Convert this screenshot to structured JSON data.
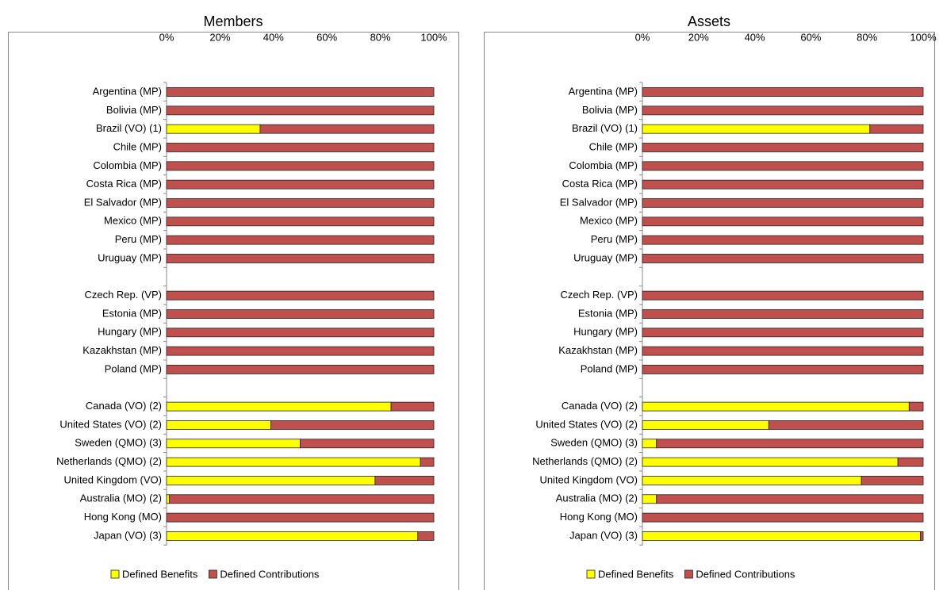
{
  "chart_data": [
    {
      "type": "bar",
      "title": "Members",
      "orientation": "horizontal",
      "stacked": true,
      "legend": "bottom",
      "categories": [
        "Argentina (MP)",
        "Bolivia (MP)",
        "Brazil (VO) (1)",
        "Chile (MP)",
        "Colombia (MP)",
        "Costa Rica (MP)",
        "El Salvador (MP)",
        "Mexico (MP)",
        "Peru (MP)",
        "Uruguay (MP)",
        null,
        "Czech Rep. (VP)",
        "Estonia (MP)",
        "Hungary (MP)",
        "Kazakhstan (MP)",
        "Poland (MP)",
        null,
        "Canada (VO) (2)",
        "United States (VO) (2)",
        "Sweden (QMO) (3)",
        "Netherlands (QMO) (2)",
        "United Kingdom (VO)",
        "Australia (MO) (2)",
        "Hong Kong (MO)",
        "Japan (VO) (3)"
      ],
      "series": [
        {
          "name": "Defined Benefits",
          "color": "#ffff00",
          "values": [
            0,
            0,
            35,
            0,
            0,
            0,
            0,
            0,
            0,
            0,
            null,
            0,
            0,
            0,
            0,
            0,
            null,
            84,
            39,
            50,
            95,
            78,
            1,
            0,
            94
          ]
        },
        {
          "name": "Defined Contributions",
          "color": "#c0504d",
          "values": [
            100,
            100,
            65,
            100,
            100,
            100,
            100,
            100,
            100,
            100,
            null,
            100,
            100,
            100,
            100,
            100,
            null,
            16,
            61,
            50,
            5,
            22,
            99,
            100,
            6
          ]
        }
      ],
      "xlim": [
        0,
        100
      ],
      "xticks": [
        {
          "value": 0,
          "label": "0%"
        },
        {
          "value": 20,
          "label": "20%"
        },
        {
          "value": 40,
          "label": "40%"
        },
        {
          "value": 60,
          "label": "60%"
        },
        {
          "value": 80,
          "label": "80%"
        },
        {
          "value": 100,
          "label": "100%"
        }
      ]
    },
    {
      "type": "bar",
      "title": "Assets",
      "orientation": "horizontal",
      "stacked": true,
      "legend": "bottom",
      "categories": [
        "Argentina (MP)",
        "Bolivia (MP)",
        "Brazil (VO) (1)",
        "Chile (MP)",
        "Colombia (MP)",
        "Costa Rica (MP)",
        "El Salvador (MP)",
        "Mexico (MP)",
        "Peru (MP)",
        "Uruguay (MP)",
        null,
        "Czech Rep. (VP)",
        "Estonia (MP)",
        "Hungary (MP)",
        "Kazakhstan (MP)",
        "Poland (MP)",
        null,
        "Canada (VO) (2)",
        "United States (VO) (2)",
        "Sweden (QMO) (3)",
        "Netherlands (QMO) (2)",
        "United Kingdom (VO)",
        "Australia (MO) (2)",
        "Hong Kong (MO)",
        "Japan (VO) (3)"
      ],
      "series": [
        {
          "name": "Defined Benefits",
          "color": "#ffff00",
          "values": [
            0,
            0,
            81,
            0,
            0,
            0,
            0,
            0,
            0,
            0,
            null,
            0,
            0,
            0,
            0,
            0,
            null,
            95,
            45,
            5,
            91,
            78,
            5,
            0,
            99
          ]
        },
        {
          "name": "Defined Contributions",
          "color": "#c0504d",
          "values": [
            100,
            100,
            19,
            100,
            100,
            100,
            100,
            100,
            100,
            100,
            null,
            100,
            100,
            100,
            100,
            100,
            null,
            5,
            55,
            95,
            9,
            22,
            95,
            100,
            1
          ]
        }
      ],
      "xlim": [
        0,
        100
      ],
      "xticks": [
        {
          "value": 0,
          "label": "0%"
        },
        {
          "value": 20,
          "label": "20%"
        },
        {
          "value": 40,
          "label": "40%"
        },
        {
          "value": 60,
          "label": "60%"
        },
        {
          "value": 80,
          "label": "80%"
        },
        {
          "value": 100,
          "label": "100%"
        }
      ]
    }
  ]
}
